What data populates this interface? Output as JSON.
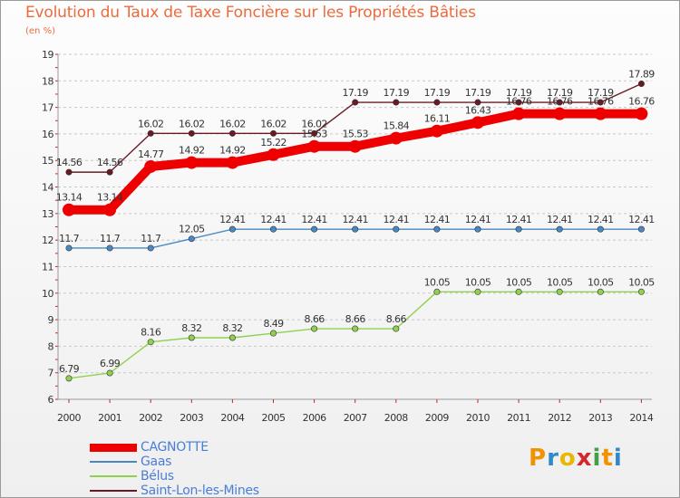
{
  "title": "Evolution du Taux de Taxe Foncière sur les Propriétés Bâties",
  "unit_label": "(en %)",
  "logo": {
    "text": "Proxiti",
    "letters": [
      "P",
      "r",
      "o",
      "x",
      "i",
      "t",
      "i"
    ],
    "letter_colors": [
      "#f39200",
      "#2f8ac9",
      "#e8b800",
      "#d6272d",
      "#43a047",
      "#f39200",
      "#2f8ac9"
    ]
  },
  "chart_data": {
    "type": "line",
    "title": "Evolution du Taux de Taxe Foncière sur les Propriétés Bâties",
    "ylabel": "(en %)",
    "xlabel": "",
    "ylim": [
      6,
      19
    ],
    "yticks": [
      6,
      7,
      8,
      9,
      10,
      11,
      12,
      13,
      14,
      15,
      16,
      17,
      18,
      19
    ],
    "categories": [
      "2000",
      "2001",
      "2002",
      "2003",
      "2004",
      "2005",
      "2006",
      "2007",
      "2008",
      "2009",
      "2010",
      "2011",
      "2012",
      "2013",
      "2014"
    ],
    "grid": "horizontal dashed",
    "legend_position": "bottom-left",
    "series": [
      {
        "name": "Saint-Lon-les-Mines",
        "color": "#6b1a22",
        "weight": "thin",
        "values": [
          14.56,
          14.56,
          16.02,
          16.02,
          16.02,
          16.02,
          16.02,
          17.19,
          17.19,
          17.19,
          17.19,
          17.19,
          17.19,
          17.19,
          17.89
        ],
        "labels": [
          "14.56",
          "14.56",
          "16.02",
          "16.02",
          "16.02",
          "16.02",
          "16.02",
          "17.19",
          "17.19",
          "17.19",
          "17.19",
          "17.19",
          "17.19",
          "17.19",
          "17.89"
        ]
      },
      {
        "name": "Gaas",
        "color": "#4a88c4",
        "weight": "thin",
        "values": [
          11.7,
          11.7,
          11.7,
          12.05,
          12.41,
          12.41,
          12.41,
          12.41,
          12.41,
          12.41,
          12.41,
          12.41,
          12.41,
          12.41,
          12.41
        ],
        "labels": [
          "11.7",
          "11.7",
          "11.7",
          "12.05",
          "12.41",
          "12.41",
          "12.41",
          "12.41",
          "12.41",
          "12.41",
          "12.41",
          "12.41",
          "12.41",
          "12.41",
          "12.41"
        ]
      },
      {
        "name": "Bélus",
        "color": "#8fd14f",
        "weight": "thin",
        "values": [
          6.79,
          6.99,
          8.16,
          8.32,
          8.32,
          8.49,
          8.66,
          8.66,
          8.66,
          10.05,
          10.05,
          10.05,
          10.05,
          10.05,
          10.05
        ],
        "labels": [
          "6.79",
          "6.99",
          "8.16",
          "8.32",
          "8.32",
          "8.49",
          "8.66",
          "8.66",
          "8.66",
          "10.05",
          "10.05",
          "10.05",
          "10.05",
          "10.05",
          "10.05"
        ]
      },
      {
        "name": "CAGNOTTE",
        "color": "#ee0000",
        "weight": "thick",
        "values": [
          13.14,
          13.14,
          14.77,
          14.92,
          14.92,
          15.22,
          15.53,
          15.53,
          15.84,
          16.11,
          16.43,
          16.76,
          16.76,
          16.76,
          16.76
        ],
        "labels": [
          "13.14",
          "13.14",
          "14.77",
          "14.92",
          "14.92",
          "15.22",
          "15.53",
          "15.53",
          "15.84",
          "16.11",
          "16.43",
          "16.76",
          "16.76",
          "16.76",
          "16.76"
        ]
      }
    ],
    "legend": [
      "CAGNOTTE",
      "Gaas",
      "Bélus",
      "Saint-Lon-les-Mines"
    ]
  }
}
